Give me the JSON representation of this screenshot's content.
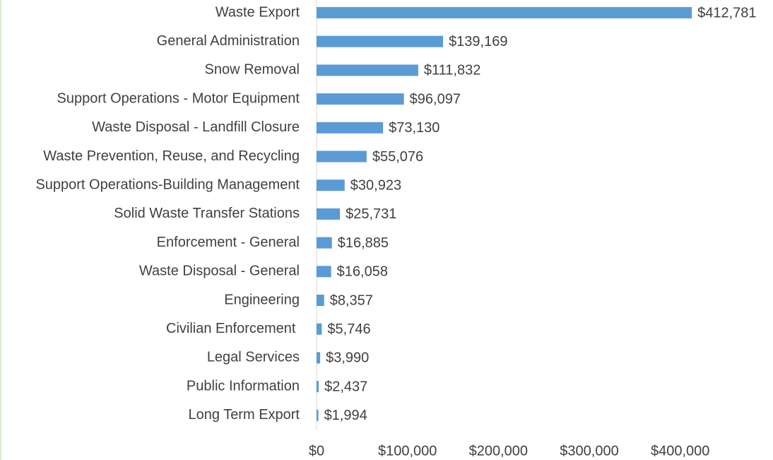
{
  "chart_data": {
    "type": "hbar",
    "categories": [
      "Waste Export",
      "General Administration",
      "Snow Removal",
      "Support Operations - Motor Equipment",
      "Waste Disposal - Landfill Closure",
      "Waste Prevention, Reuse, and Recycling",
      "Support Operations-Building Management",
      "Solid Waste Transfer Stations",
      "Enforcement - General",
      "Waste Disposal - General",
      "Engineering",
      "Civilian Enforcement ",
      "Legal Services",
      "Public Information",
      "Long Term Export"
    ],
    "values": [
      412781,
      139169,
      111832,
      96097,
      73130,
      55076,
      30923,
      25731,
      16885,
      16058,
      8357,
      5746,
      3990,
      2437,
      1994
    ],
    "value_labels": [
      "$412,781",
      "$139,169",
      "$111,832",
      "$96,097",
      "$73,130",
      "$55,076",
      "$30,923",
      "$25,731",
      "$16,885",
      "$16,058",
      "$8,357",
      "$5,746",
      "$3,990",
      "$2,437",
      "$1,994"
    ],
    "color": "#5b9bd5",
    "xlim": [
      0,
      450000
    ],
    "xticks": [
      {
        "value": 0,
        "label": "$0"
      },
      {
        "value": 100000,
        "label": "$100,000"
      },
      {
        "value": 200000,
        "label": "$200,000"
      },
      {
        "value": 300000,
        "label": "$300,000"
      },
      {
        "value": 400000,
        "label": "$400,000"
      }
    ],
    "grid": false
  }
}
